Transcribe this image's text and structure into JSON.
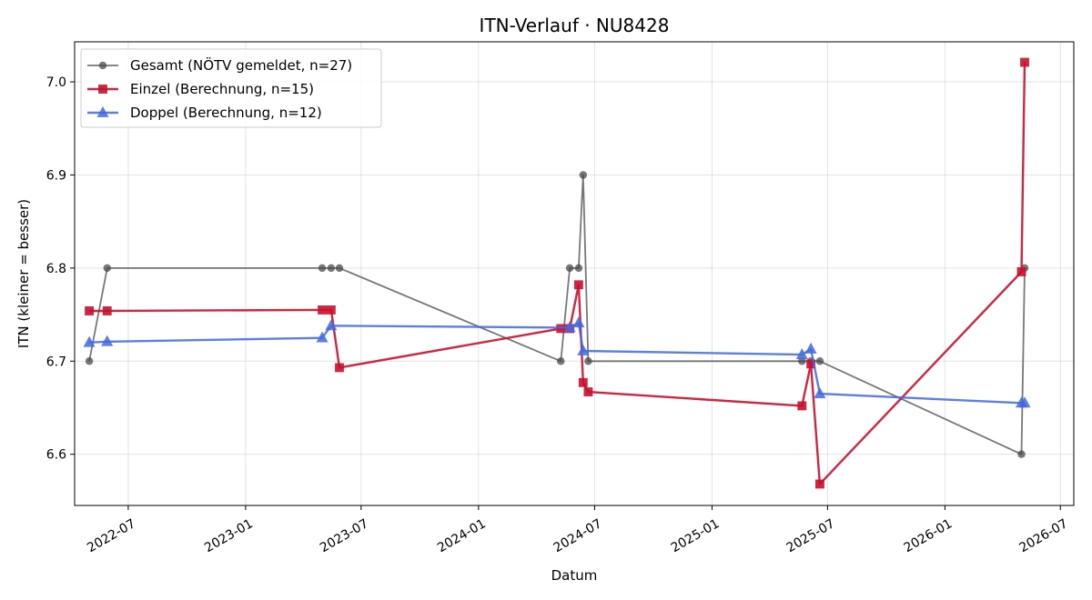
{
  "chart_data": {
    "type": "line",
    "title": "ITN-Verlauf · NU8428",
    "xlabel": "Datum",
    "ylabel": "ITN  (kleiner = besser)",
    "xlim": [
      "2022-04-08",
      "2026-07-22"
    ],
    "ylim": [
      6.545,
      7.043
    ],
    "x_ticks": [
      "2022-07",
      "2023-01",
      "2023-07",
      "2024-01",
      "2024-07",
      "2025-01",
      "2025-07",
      "2026-01",
      "2026-07"
    ],
    "y_ticks": [
      "6.6",
      "6.7",
      "6.8",
      "6.9",
      "7.0"
    ],
    "grid": true,
    "legend_position": "top-left",
    "series": [
      {
        "name": "Gesamt (NÖTV gemeldet, n=27)",
        "color": "#444444",
        "marker": "circle",
        "points": [
          [
            "2022-05-01",
            6.7
          ],
          [
            "2022-05-29",
            6.8
          ],
          [
            "2023-05-01",
            6.8
          ],
          [
            "2023-05-15",
            6.8
          ],
          [
            "2023-05-28",
            6.8
          ],
          [
            "2024-05-09",
            6.7
          ],
          [
            "2024-05-23",
            6.8
          ],
          [
            "2024-06-06",
            6.8
          ],
          [
            "2024-06-13",
            6.9
          ],
          [
            "2024-06-21",
            6.7
          ],
          [
            "2025-05-22",
            6.7
          ],
          [
            "2025-06-05",
            6.7
          ],
          [
            "2025-06-19",
            6.7
          ],
          [
            "2026-05-01",
            6.6
          ],
          [
            "2026-05-06",
            6.8
          ]
        ]
      },
      {
        "name": "Einzel (Berechnung, n=15)",
        "color": "#C8102E",
        "marker": "square",
        "points": [
          [
            "2022-05-01",
            6.754
          ],
          [
            "2022-05-29",
            6.754
          ],
          [
            "2023-05-01",
            6.755
          ],
          [
            "2023-05-15",
            6.755
          ],
          [
            "2023-05-28",
            6.693
          ],
          [
            "2024-05-09",
            6.735
          ],
          [
            "2024-05-23",
            6.735
          ],
          [
            "2024-06-06",
            6.782
          ],
          [
            "2024-06-13",
            6.677
          ],
          [
            "2024-06-21",
            6.667
          ],
          [
            "2025-05-22",
            6.652
          ],
          [
            "2025-06-05",
            6.697
          ],
          [
            "2025-06-19",
            6.568
          ],
          [
            "2026-05-01",
            6.796
          ],
          [
            "2026-05-06",
            7.021
          ]
        ]
      },
      {
        "name": "Doppel (Berechnung, n=12)",
        "color": "#4169E1",
        "marker": "triangle",
        "points": [
          [
            "2022-05-01",
            6.72
          ],
          [
            "2022-05-29",
            6.721
          ],
          [
            "2023-05-01",
            6.725
          ],
          [
            "2023-05-15",
            6.738
          ],
          [
            "2024-05-23",
            6.736
          ],
          [
            "2024-06-06",
            6.741
          ],
          [
            "2024-06-13",
            6.711
          ],
          [
            "2025-05-22",
            6.707
          ],
          [
            "2025-06-05",
            6.713
          ],
          [
            "2025-06-19",
            6.665
          ],
          [
            "2026-05-01",
            6.655
          ],
          [
            "2026-05-06",
            6.655
          ]
        ]
      }
    ]
  }
}
